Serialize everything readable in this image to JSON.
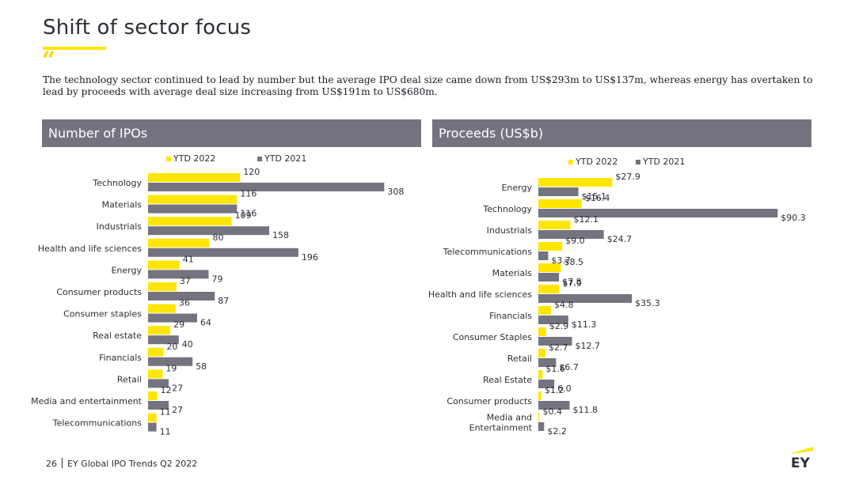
{
  "page": {
    "title": "Shift of sector focus",
    "quote_glyph": "“",
    "intro": "The technology sector continued to lead by number but the average IPO deal size came down from US$293m to US$137m, whereas energy has overtaken to lead by proceeds with average deal size increasing from US$191m to US$680m.",
    "footer_page": "26",
    "footer_text": "EY Global IPO Trends Q2 2022",
    "logo_text": "EY"
  },
  "colors": {
    "ytd2022": "#ffe600",
    "ytd2021": "#747480",
    "header_bg": "#747480"
  },
  "chart_data": [
    {
      "type": "bar",
      "orientation": "horizontal",
      "title": "Number of IPOs",
      "legend": [
        "YTD 2022",
        "YTD 2021"
      ],
      "legend_position": "top",
      "grid": false,
      "xlim": [
        0,
        320
      ],
      "categories": [
        "Technology",
        "Materials",
        "Industrials",
        "Health and life sciences",
        "Energy",
        "Consumer products",
        "Consumer staples",
        "Real estate",
        "Financials",
        "Retail",
        "Media and entertainment",
        "Telecommunications"
      ],
      "series": [
        {
          "name": "YTD 2022",
          "values": [
            120,
            116,
            109,
            80,
            41,
            37,
            36,
            29,
            20,
            19,
            12,
            11
          ],
          "labels": [
            "120",
            "116",
            "109",
            "80",
            "41",
            "37",
            "36",
            "29",
            "20",
            "19",
            "12",
            "11"
          ]
        },
        {
          "name": "YTD 2021",
          "values": [
            308,
            116,
            158,
            196,
            79,
            87,
            64,
            40,
            58,
            27,
            27,
            11
          ],
          "labels": [
            "308",
            "116",
            "158",
            "196",
            "79",
            "87",
            "64",
            "40",
            "58",
            "27",
            "27",
            "11"
          ]
        }
      ]
    },
    {
      "type": "bar",
      "orientation": "horizontal",
      "title": "Proceeds (US$b)",
      "legend": [
        "YTD 2022",
        "YTD 2021"
      ],
      "legend_position": "top",
      "grid": false,
      "xlim": [
        0,
        92
      ],
      "categories": [
        "Energy",
        "Technology",
        "Industrials",
        "Telecommunications",
        "Materials",
        "Health and life sciences",
        "Financials",
        "Consumer Staples",
        "Retail",
        "Real Estate",
        "Consumer products",
        "Media and\nEntertainment"
      ],
      "series": [
        {
          "name": "YTD 2022",
          "values": [
            27.9,
            16.4,
            12.1,
            9.0,
            8.5,
            7.9,
            4.8,
            2.9,
            2.7,
            1.6,
            1.2,
            0.4
          ],
          "labels": [
            "$27.9",
            "$16.4",
            "$12.1",
            "$9.0",
            "$8.5",
            "$7.9",
            "$4.8",
            "$2.9",
            "$2.7",
            "$1.6",
            "$1.2",
            "$0.4"
          ]
        },
        {
          "name": "YTD 2021",
          "values": [
            15.1,
            90.3,
            24.7,
            3.7,
            7.8,
            35.3,
            11.3,
            12.7,
            6.7,
            6.0,
            11.8,
            2.2
          ],
          "labels": [
            "$15.1",
            "$90.3",
            "$24.7",
            "$3.7",
            "$7.8",
            "$35.3",
            "$11.3",
            "$12.7",
            "$6.7",
            "6.0",
            "$11.8",
            "$2.2"
          ]
        }
      ]
    }
  ]
}
